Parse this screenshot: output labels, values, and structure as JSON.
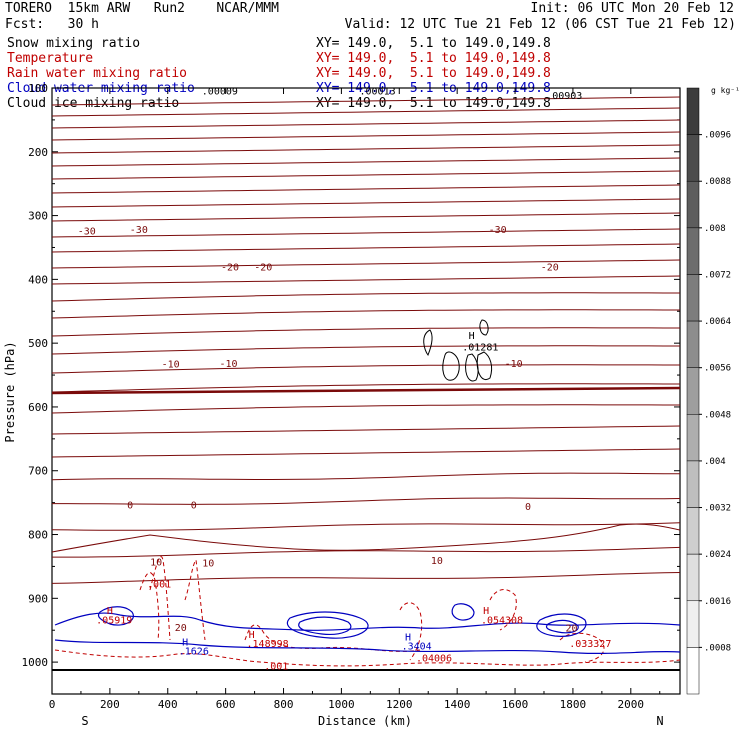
{
  "header": {
    "line1_left": "TORERO  15km ARW   Run2    NCAR/MMM",
    "line1_right": "Init: 06 UTC Mon 20 Feb 12",
    "line2_left": "Fcst:   30 h",
    "line2_right": "Valid: 12 UTC Tue 21 Feb 12 (06 CST Tue 21 Feb 12)",
    "fields": [
      {
        "name": "Snow mixing ratio",
        "xy": "XY= 149.0,  5.1 to 149.0,149.8",
        "color": "#000000"
      },
      {
        "name": "Temperature",
        "xy": "XY= 149.0,  5.1 to 149.0,149.8",
        "color": "#c00000"
      },
      {
        "name": "Rain water mixing ratio",
        "xy": "XY= 149.0,  5.1 to 149.0,149.8",
        "color": "#c00000"
      },
      {
        "name": "Cloud water mixing ratio",
        "xy": "XY= 149.0,  5.1 to 149.0,149.8",
        "color": "#0000c0"
      },
      {
        "name": "Cloud ice mixing ratio",
        "xy": "XY= 149.0,  5.1 to 149.0,149.8",
        "color": "#000000"
      }
    ]
  },
  "chart_data": {
    "type": "contour cross-section",
    "xlabel": "Distance (km)",
    "ylabel": "Pressure (hPa)",
    "xlim": [
      0,
      2170
    ],
    "ylim": [
      100,
      1050
    ],
    "x_ticks": [
      "0",
      "200",
      "400",
      "600",
      "800",
      "1000",
      "1200",
      "1400",
      "1600",
      "1800",
      "2000"
    ],
    "y_ticks": [
      "100",
      "200",
      "300",
      "400",
      "500",
      "600",
      "700",
      "800",
      "900",
      "1000"
    ],
    "x_end_left": "S",
    "x_end_right": "N",
    "colorbar": {
      "unit": "g kg⁻¹",
      "labels": [
        ".0096",
        ".0088",
        ".008",
        ".0072",
        ".0064",
        ".0056",
        ".0048",
        ".004",
        ".0032",
        ".0024",
        ".0016",
        ".0008"
      ]
    },
    "temperature_labels": [
      {
        "text": "-30",
        "x": 120,
        "p": 323
      },
      {
        "text": "-30",
        "x": 300,
        "p": 321
      },
      {
        "text": "-30",
        "x": 1540,
        "p": 321
      },
      {
        "text": "-20",
        "x": 615,
        "p": 380
      },
      {
        "text": "-20",
        "x": 730,
        "p": 380
      },
      {
        "text": "-20",
        "x": 1720,
        "p": 380
      },
      {
        "text": "-10",
        "x": 410,
        "p": 532
      },
      {
        "text": "-10",
        "x": 610,
        "p": 531
      },
      {
        "text": "-10",
        "x": 1595,
        "p": 531
      },
      {
        "text": "0",
        "x": 270,
        "p": 753
      },
      {
        "text": "0",
        "x": 490,
        "p": 753
      },
      {
        "text": "0",
        "x": 1645,
        "p": 755
      },
      {
        "text": "10",
        "x": 360,
        "p": 842
      },
      {
        "text": "10",
        "x": 540,
        "p": 844
      },
      {
        "text": "10",
        "x": 1330,
        "p": 840
      },
      {
        "text": "20",
        "x": 445,
        "p": 945
      },
      {
        "text": "20",
        "x": 1795,
        "p": 946
      }
    ],
    "extrema_labels": [
      {
        "text": "H",
        "x": 1450,
        "p": 487,
        "color": "#000000"
      },
      {
        "text": ".01281",
        "x": 1480,
        "p": 505,
        "color": "#000000"
      },
      {
        "text": ".00009",
        "x": 580,
        "p": 104,
        "color": "#000000"
      },
      {
        "text": ".00013",
        "x": 1125,
        "p": 104,
        "color": "#000000"
      },
      {
        "text": ".00903",
        "x": 1770,
        "p": 111,
        "color": "#000000"
      },
      {
        "text": ".001",
        "x": 370,
        "p": 877,
        "color": "#c00000"
      },
      {
        "text": ".001",
        "x": 775,
        "p": 1005,
        "color": "#c00000"
      },
      {
        "text": "H",
        "x": 200,
        "p": 918,
        "color": "#c00000"
      },
      {
        "text": ".05919",
        "x": 215,
        "p": 933,
        "color": "#c00000"
      },
      {
        "text": "H",
        "x": 690,
        "p": 956,
        "color": "#c00000"
      },
      {
        "text": ".148998",
        "x": 745,
        "p": 970,
        "color": "#c00000"
      },
      {
        "text": ".04006",
        "x": 1320,
        "p": 993,
        "color": "#c00000"
      },
      {
        "text": "H",
        "x": 1500,
        "p": 918,
        "color": "#c00000"
      },
      {
        "text": ".054308",
        "x": 1555,
        "p": 933,
        "color": "#c00000"
      },
      {
        "text": ".033327",
        "x": 1860,
        "p": 970,
        "color": "#c00000"
      },
      {
        "text": "H",
        "x": 460,
        "p": 968,
        "color": "#0000c0"
      },
      {
        "text": ".1626",
        "x": 490,
        "p": 982,
        "color": "#0000c0"
      },
      {
        "text": "H",
        "x": 1230,
        "p": 960,
        "color": "#0000c0"
      },
      {
        "text": ".3404",
        "x": 1260,
        "p": 974,
        "color": "#0000c0"
      }
    ]
  }
}
